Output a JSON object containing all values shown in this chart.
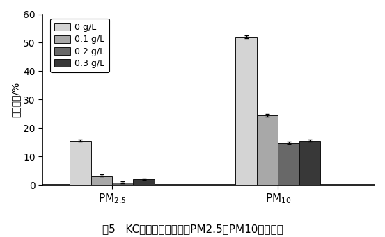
{
  "groups": [
    "PM$_{2.5}$",
    "PM$_{10}$"
  ],
  "series": [
    {
      "label": "0 g/L",
      "color": "#d4d4d4",
      "values": [
        15.5,
        52.0
      ],
      "errors": [
        0.4,
        0.5
      ]
    },
    {
      "label": "0.1 g/L",
      "color": "#a8a8a8",
      "values": [
        3.3,
        24.5
      ],
      "errors": [
        0.35,
        0.45
      ]
    },
    {
      "label": "0.2 g/L",
      "color": "#686868",
      "values": [
        0.9,
        14.8
      ],
      "errors": [
        0.4,
        0.35
      ]
    },
    {
      "label": "0.3 g/L",
      "color": "#383838",
      "values": [
        2.0,
        15.5
      ],
      "errors": [
        0.35,
        0.35
      ]
    }
  ],
  "ylabel": "体积分数/%",
  "ylim": [
    0,
    60
  ],
  "yticks": [
    0,
    10,
    20,
    30,
    40,
    50,
    60
  ],
  "bar_width": 0.055,
  "group_centers": [
    0.25,
    0.68
  ],
  "xlim": [
    0.07,
    0.93
  ],
  "caption": "图5   KC的含量对飞灰中的PM2.5、PM10含量影响",
  "background_color": "#ffffff",
  "xlabel_fontsize": 11,
  "ylabel_fontsize": 10,
  "tick_fontsize": 10,
  "legend_fontsize": 9,
  "caption_fontsize": 11
}
